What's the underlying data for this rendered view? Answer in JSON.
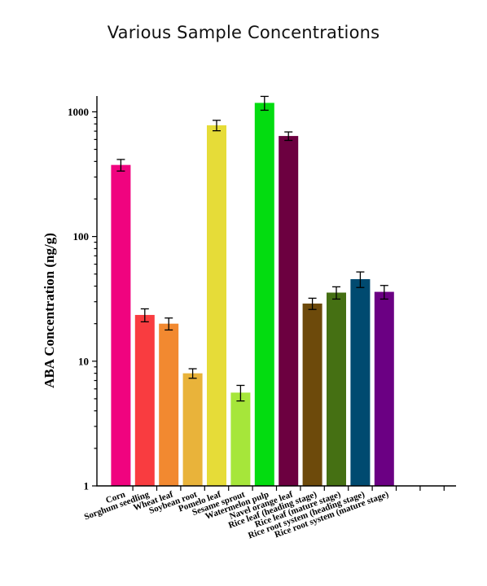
{
  "chart_data": {
    "type": "bar",
    "title": "Various Sample Concentrations",
    "xlabel": "",
    "ylabel": "ABA Concentration (ng/g)",
    "yscale": "log",
    "ylim": [
      1,
      1600
    ],
    "yticks": [
      1,
      10,
      100,
      1000
    ],
    "ytick_labels": [
      "1",
      "10",
      "100",
      "1000"
    ],
    "grid": false,
    "legend": "none",
    "categories": [
      "Corn",
      "Sorghum seedling",
      "Wheat leaf",
      "Soybean root",
      "Pomelo leaf",
      "Sesame sprout",
      "Watermelon pulp",
      "Navel orange leaf",
      "Rice leaf (heading stage)",
      "Rice leaf (mature stage)",
      "Rice root system (heading stage)",
      "Rice root system (mature stage)"
    ],
    "values": [
      375,
      23.5,
      20,
      8,
      780,
      5.6,
      1180,
      640,
      29,
      35.5,
      45.5,
      36
    ],
    "errors": [
      40,
      2.8,
      2.2,
      0.7,
      75,
      0.8,
      150,
      50,
      3,
      4,
      6.5,
      4.5
    ],
    "colors": [
      "#f0037f",
      "#f93c40",
      "#f28930",
      "#e9b33a",
      "#e6dc38",
      "#a6e63a",
      "#03dc10",
      "#6c0040",
      "#6d4a0b",
      "#457013",
      "#004a70",
      "#6b0083"
    ],
    "empty_slots_after": 2
  }
}
